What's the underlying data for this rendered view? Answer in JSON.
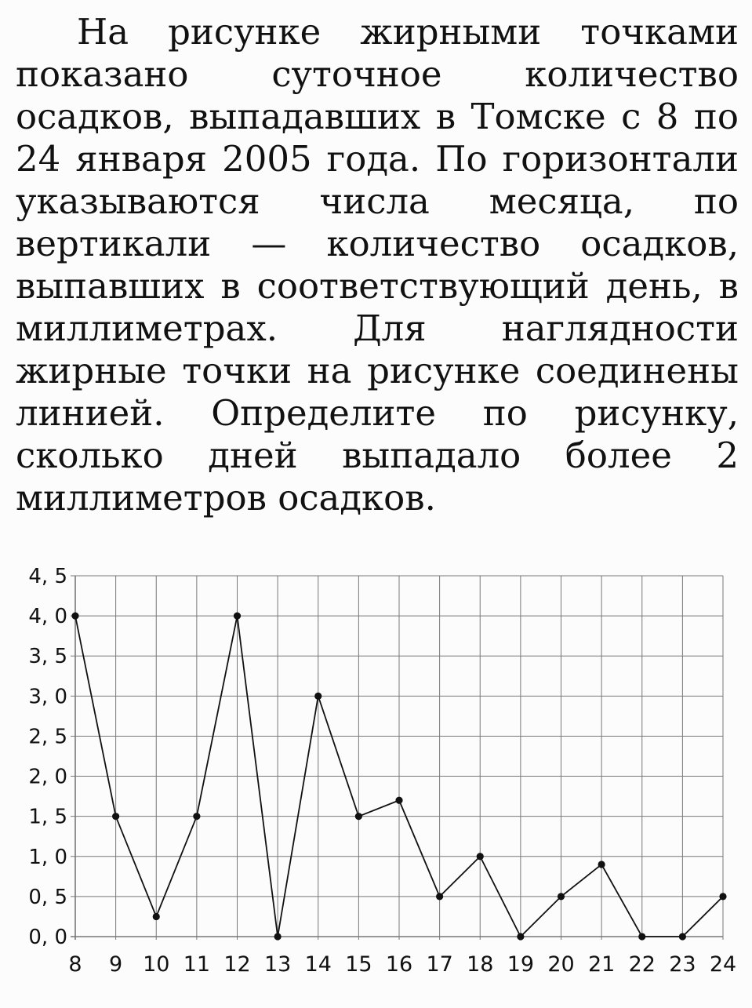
{
  "problem": {
    "text": "На рисунке жирными точками показано суточное количество осадков, выпадавших в Томске с 8 по 24 января 2005 года. По горизонтали указываются числа месяца, по вертикали — количество осадков, выпавших в соответствующий день, в миллиметрах. Для наглядности жирные точки на рисунке соединены линией. Определите по рисунку, сколько дней выпадало более 2 миллиметров осадков."
  },
  "chart_data": {
    "type": "line",
    "x": [
      8,
      9,
      10,
      11,
      12,
      13,
      14,
      15,
      16,
      17,
      18,
      19,
      20,
      21,
      22,
      23,
      24
    ],
    "values": [
      4.0,
      1.5,
      0.25,
      1.5,
      4.0,
      0.0,
      3.0,
      1.5,
      1.7,
      0.5,
      1.0,
      0.0,
      0.5,
      0.9,
      0.0,
      0.0,
      0.5
    ],
    "x_tick_labels": [
      "8",
      "9",
      "10",
      "11",
      "12",
      "13",
      "14",
      "15",
      "16",
      "17",
      "18",
      "19",
      "20",
      "21",
      "22",
      "23",
      "24"
    ],
    "y_tick_labels": [
      "0, 0",
      "0, 5",
      "1, 0",
      "1, 5",
      "2, 0",
      "2, 5",
      "3, 0",
      "3, 5",
      "4, 0",
      "4, 5"
    ],
    "y_ticks": [
      0,
      0.5,
      1.0,
      1.5,
      2.0,
      2.5,
      3.0,
      3.5,
      4.0,
      4.5
    ],
    "xlim": [
      8,
      24
    ],
    "ylim": [
      0,
      4.5
    ],
    "grid": true,
    "line_color": "#111111",
    "grid_color": "#777777"
  }
}
